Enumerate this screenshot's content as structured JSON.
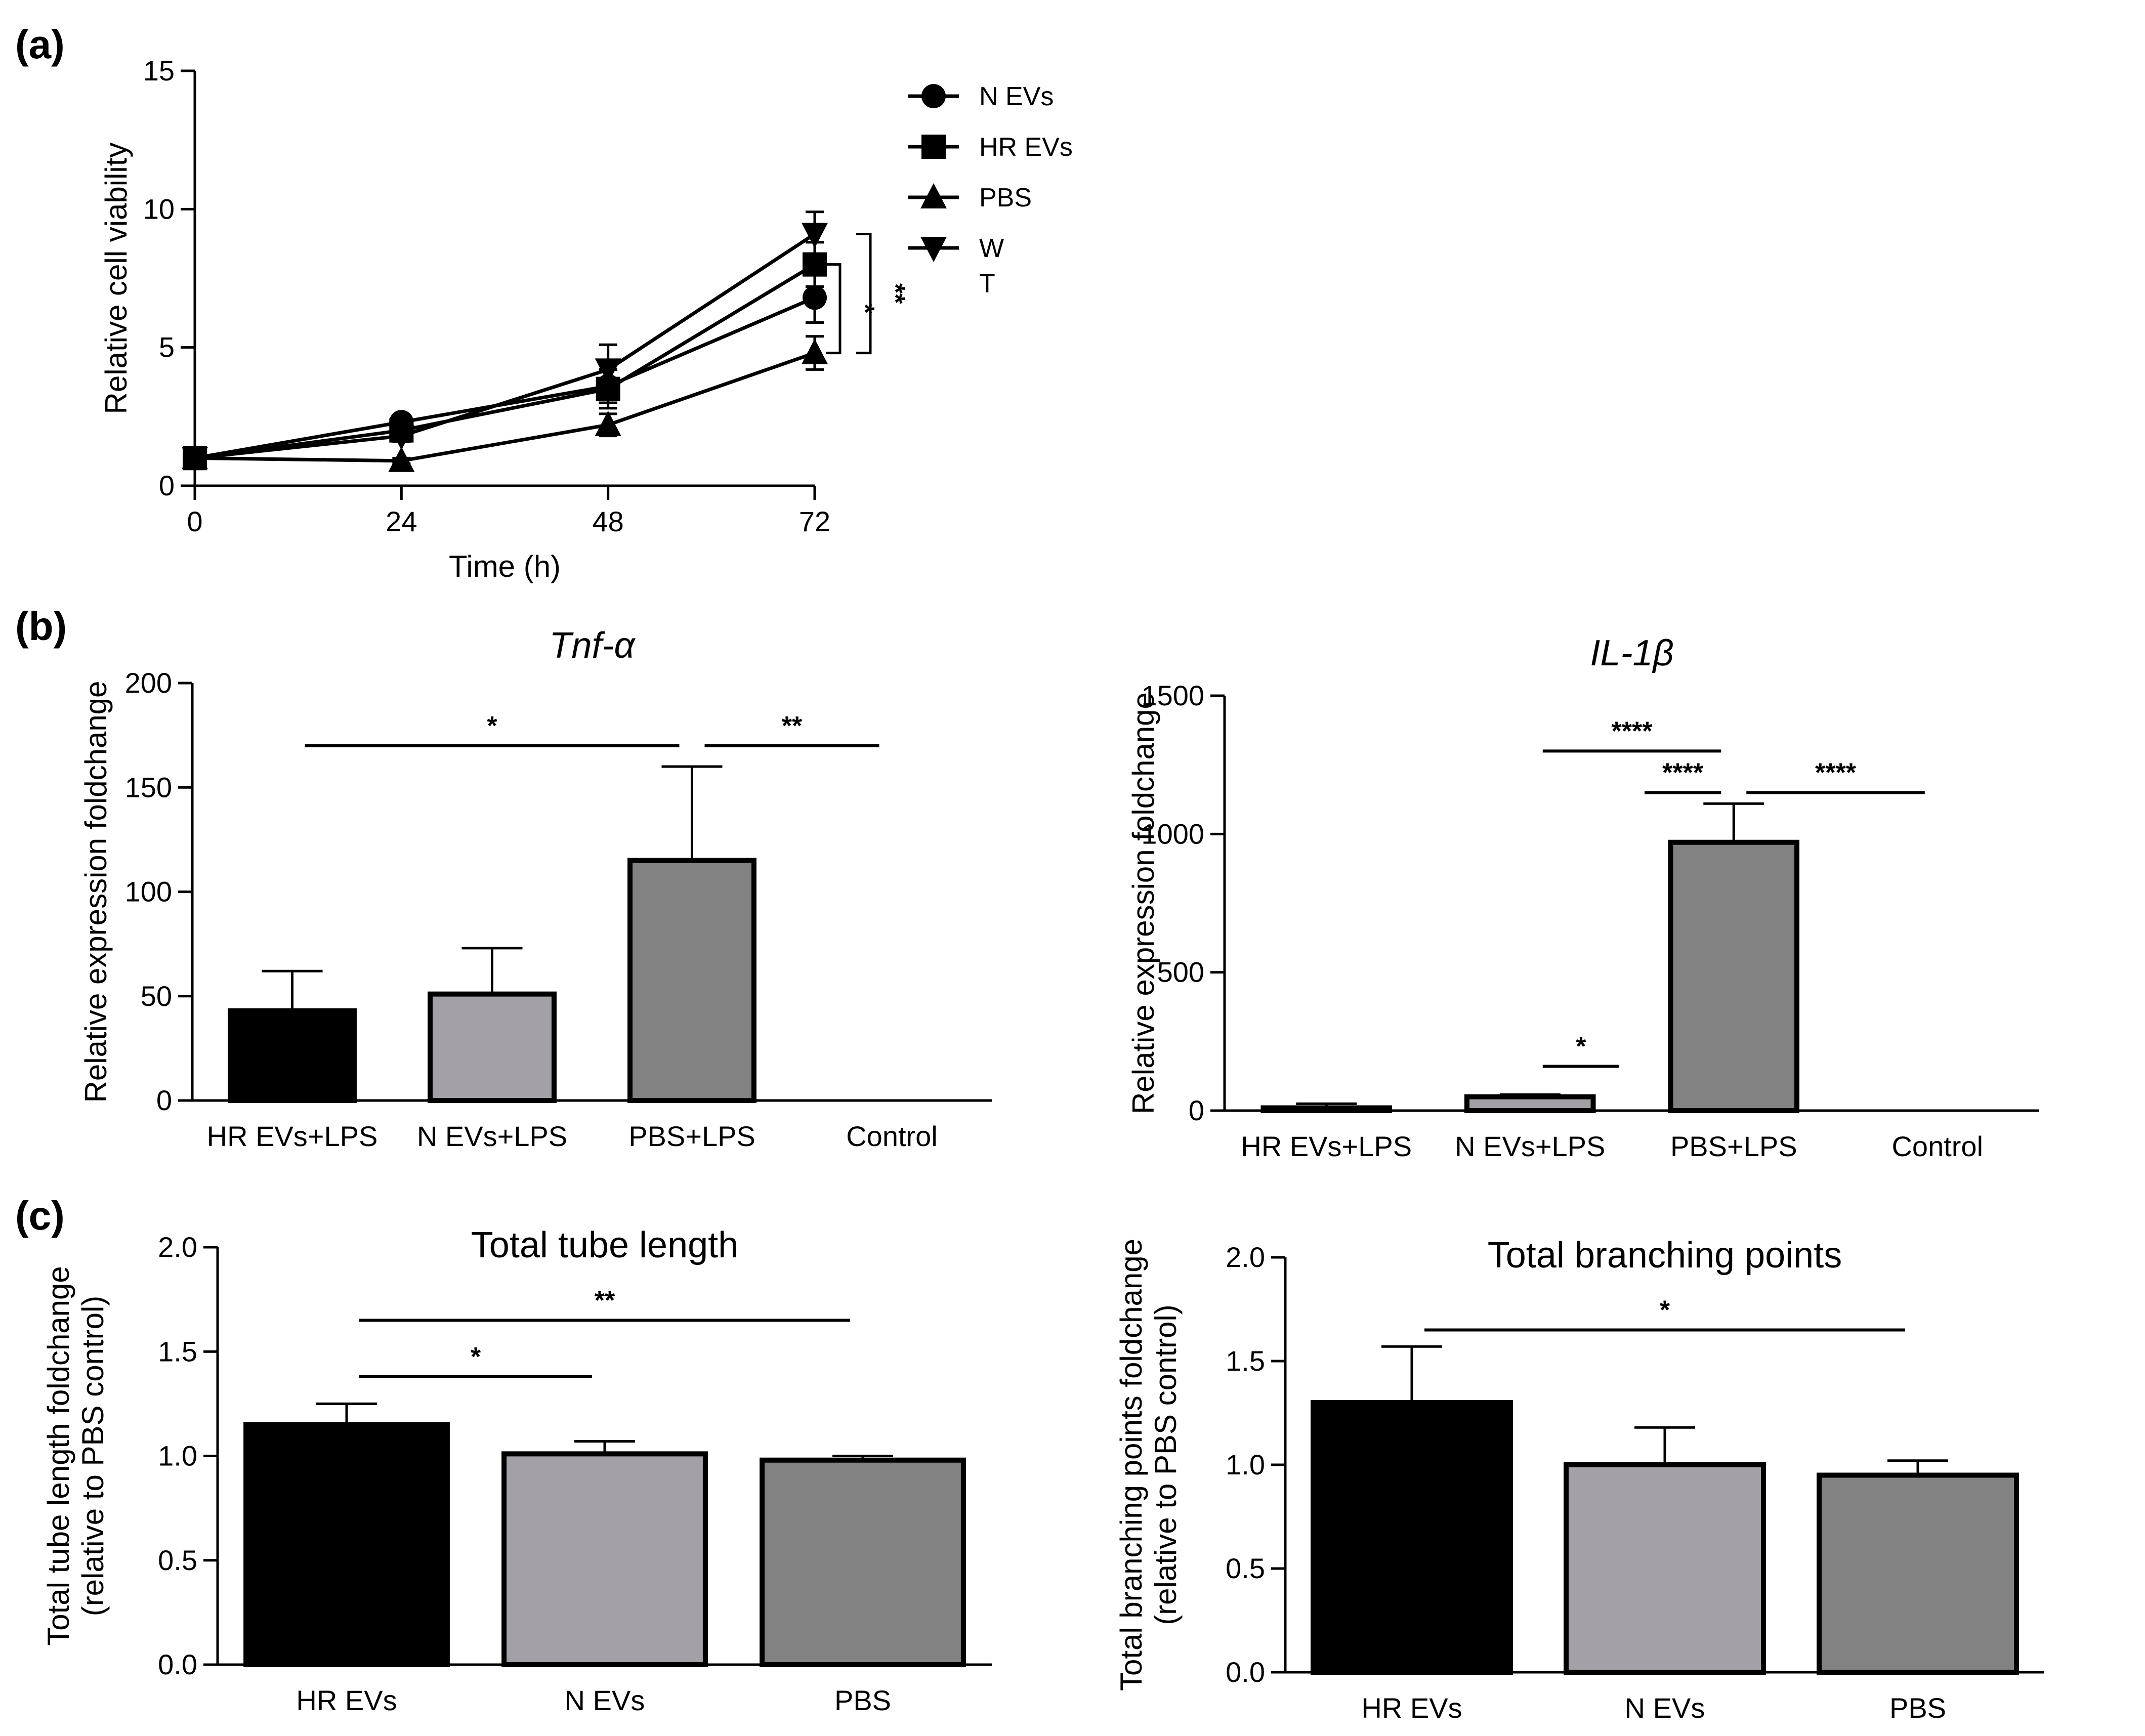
{
  "panels": {
    "a": "(a)",
    "b": "(b)",
    "c": "(c)"
  },
  "chart_data": [
    {
      "id": "a",
      "type": "line",
      "title": "",
      "xlabel": "Time (h)",
      "ylabel": "Relative cell viability",
      "x": [
        0,
        24,
        48,
        72
      ],
      "xticks": [
        0,
        24,
        48,
        72
      ],
      "yticks": [
        0,
        5,
        10,
        15
      ],
      "xlim": [
        0,
        72
      ],
      "ylim": [
        0,
        15
      ],
      "series": [
        {
          "name": "N EVs",
          "marker": "circle",
          "values": [
            1.0,
            2.3,
            3.6,
            6.8
          ],
          "errors": [
            0.1,
            0.2,
            0.6,
            0.9
          ]
        },
        {
          "name": "HR EVs",
          "marker": "square",
          "values": [
            1.0,
            2.0,
            3.5,
            8.0
          ],
          "errors": [
            0.1,
            0.2,
            0.7,
            0.8
          ]
        },
        {
          "name": "PBS",
          "marker": "triangle-up",
          "values": [
            1.0,
            0.9,
            2.2,
            4.8
          ],
          "errors": [
            0.1,
            0.1,
            0.4,
            0.6
          ]
        },
        {
          "name": "W\nT",
          "marker": "triangle-down",
          "values": [
            1.0,
            1.8,
            4.2,
            9.1
          ],
          "errors": [
            0.1,
            0.2,
            0.9,
            0.8
          ]
        }
      ],
      "significance": [
        {
          "label": "*",
          "y1": 8.0,
          "y2": 4.8,
          "level": 1
        },
        {
          "label": "**",
          "y1": 9.1,
          "y2": 4.8,
          "level": 2
        }
      ]
    },
    {
      "id": "b1",
      "type": "bar",
      "title": "Tnf-α",
      "ylabel": "Relative expression foldchange",
      "categories": [
        "HR EVs+LPS",
        "N EVs+LPS",
        "PBS+LPS",
        "Control"
      ],
      "values": [
        43,
        51,
        115,
        0
      ],
      "errors": [
        19,
        22,
        45,
        0
      ],
      "colors": [
        "#000000",
        "#a3a1a6",
        "#828282",
        "#ffffff"
      ],
      "yticks": [
        0,
        50,
        100,
        150,
        200
      ],
      "ylim": [
        0,
        200
      ],
      "significance": [
        {
          "label": "*",
          "from": 0,
          "to": 2,
          "y": 170
        },
        {
          "label": "**",
          "from": 2,
          "to": 3,
          "y": 170
        }
      ]
    },
    {
      "id": "b2",
      "type": "bar",
      "title": "IL-1β",
      "ylabel": "Relative expression foldchange",
      "categories": [
        "HR EVs+LPS",
        "N EVs+LPS",
        "PBS+LPS",
        "Control"
      ],
      "values": [
        10,
        50,
        970,
        0
      ],
      "errors": [
        15,
        8,
        140,
        0
      ],
      "colors": [
        "#000000",
        "#a3a1a6",
        "#828282",
        "#ffffff"
      ],
      "yticks": [
        0,
        500,
        1000,
        1500
      ],
      "ylim": [
        0,
        1500
      ],
      "significance": [
        {
          "label": "****",
          "from": 1,
          "to": 2,
          "y": 1300
        },
        {
          "label": "****",
          "from": 1.5,
          "to": 2,
          "y": 1150
        },
        {
          "label": "****",
          "from": 2,
          "to": 3,
          "y": 1150
        },
        {
          "label": "*",
          "from": 1,
          "to": 1.5,
          "y": 160
        }
      ]
    },
    {
      "id": "c1",
      "type": "bar",
      "title": "Total tube length",
      "ylabel": "Total tube length foldchange\n(relative to PBS control)",
      "categories": [
        "HR EVs",
        "N EVs",
        "PBS"
      ],
      "values": [
        1.15,
        1.01,
        0.98
      ],
      "errors": [
        0.1,
        0.06,
        0.02
      ],
      "colors": [
        "#000000",
        "#a3a1a6",
        "#828282"
      ],
      "yticks": [
        0.0,
        0.5,
        1.0,
        1.5,
        2.0
      ],
      "ylim": [
        0,
        2.0
      ],
      "significance": [
        {
          "label": "**",
          "from": 0,
          "to": 2,
          "y": 1.65
        },
        {
          "label": "*",
          "from": 0,
          "to": 1,
          "y": 1.38
        }
      ]
    },
    {
      "id": "c2",
      "type": "bar",
      "title": "Total branching points",
      "ylabel": "Total branching points foldchange\n(relative to PBS control)",
      "categories": [
        "HR EVs",
        "N EVs",
        "PBS"
      ],
      "values": [
        1.3,
        1.0,
        0.95
      ],
      "errors": [
        0.27,
        0.18,
        0.07
      ],
      "colors": [
        "#000000",
        "#a3a1a6",
        "#828282"
      ],
      "yticks": [
        0.0,
        0.5,
        1.0,
        1.5,
        2.0
      ],
      "ylim": [
        0,
        2.0
      ],
      "significance": [
        {
          "label": "*",
          "from": 0,
          "to": 2,
          "y": 1.65
        }
      ]
    }
  ]
}
